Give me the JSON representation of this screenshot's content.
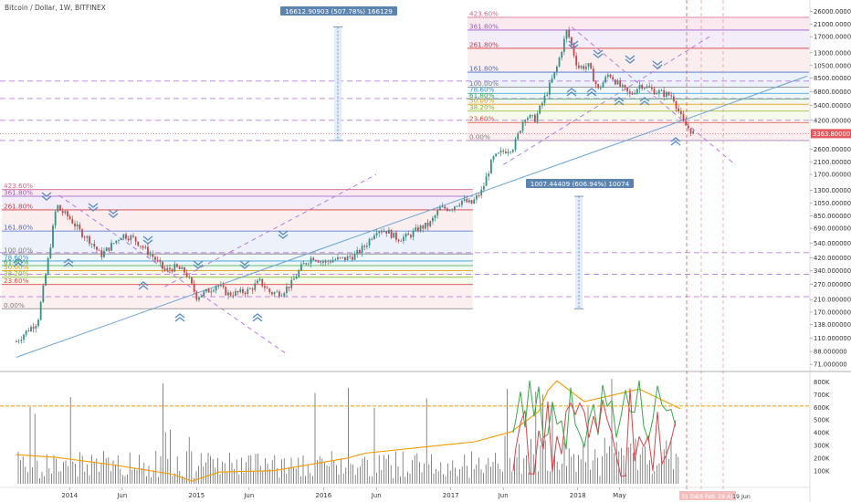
{
  "title": "Bitcoin / Dollar, 1W, BITFINEX",
  "colors": {
    "candle_up": "#3a8e82",
    "candle_down": "#c0494e",
    "trend": "#6aa6d6",
    "dashed": "#b77cdc",
    "hline": "#b77cdc",
    "volume": "#555555",
    "orange": "#f59a00",
    "green": "#3aa84a",
    "red": "#d8434a",
    "price_tag": "#e25a5f",
    "measure": "#5b84b1",
    "chevron": "#5b8ec4"
  },
  "chart_data": {
    "type": "candlestick",
    "symbol": "Bitcoin / Dollar",
    "interval": "1W",
    "exchange": "BITFINEX",
    "y_scale": "log",
    "ylim": [
      65,
      30000
    ],
    "price_ticks": [
      "26000.000000",
      "21000.000000",
      "17000.000000",
      "13000.000000",
      "10500.000000",
      "8500.000000",
      "6800.000000",
      "5400.000000",
      "4200.000000",
      "2600.000000",
      "2100.000000",
      "1700.000000",
      "1300.000000",
      "1050.000000",
      "850.000000",
      "690.000000",
      "540.000000",
      "420.000000",
      "340.000000",
      "270.000000",
      "210.000000",
      "170.000000",
      "138.000000",
      "110.000000",
      "88.000000",
      "71.000000"
    ],
    "last_price": "3363.80000",
    "time_ticks": [
      "2014",
      "Jun",
      "2015",
      "Jun",
      "2016",
      "Jun",
      "2017",
      "Jun",
      "2018",
      "May"
    ],
    "axis_dates": [
      "31 De",
      "18 Feb",
      "19 Apr",
      "19 Jun"
    ],
    "series": [
      {
        "name": "BTCUSD",
        "points": [
          [
            "2013-08",
            104
          ],
          [
            "2013-09",
            125
          ],
          [
            "2013-10",
            145
          ],
          [
            "2013-11",
            420
          ],
          [
            "2013-11-25",
            1050
          ],
          [
            "2013-12",
            950
          ],
          [
            "2014-01",
            820
          ],
          [
            "2014-02",
            650
          ],
          [
            "2014-03",
            560
          ],
          [
            "2014-04",
            440
          ],
          [
            "2014-05",
            520
          ],
          [
            "2014-06",
            620
          ],
          [
            "2014-07",
            590
          ],
          [
            "2014-08",
            500
          ],
          [
            "2014-09",
            420
          ],
          [
            "2014-10",
            340
          ],
          [
            "2014-11",
            360
          ],
          [
            "2014-12",
            330
          ],
          [
            "2015-01",
            220
          ],
          [
            "2015-02",
            240
          ],
          [
            "2015-03",
            270
          ],
          [
            "2015-04",
            230
          ],
          [
            "2015-05",
            235
          ],
          [
            "2015-06",
            245
          ],
          [
            "2015-07",
            285
          ],
          [
            "2015-08",
            235
          ],
          [
            "2015-09",
            235
          ],
          [
            "2015-10",
            275
          ],
          [
            "2015-11",
            370
          ],
          [
            "2015-12",
            430
          ],
          [
            "2016-01",
            390
          ],
          [
            "2016-02",
            410
          ],
          [
            "2016-03",
            415
          ],
          [
            "2016-04",
            440
          ],
          [
            "2016-05",
            520
          ],
          [
            "2016-06",
            680
          ],
          [
            "2016-07",
            660
          ],
          [
            "2016-08",
            580
          ],
          [
            "2016-09",
            605
          ],
          [
            "2016-10",
            690
          ],
          [
            "2016-11",
            740
          ],
          [
            "2016-12",
            960
          ],
          [
            "2017-01",
            970
          ],
          [
            "2017-02",
            1100
          ],
          [
            "2017-03",
            1040
          ],
          [
            "2017-04",
            1300
          ],
          [
            "2017-05",
            2200
          ],
          [
            "2017-06",
            2500
          ],
          [
            "2017-07",
            2700
          ],
          [
            "2017-08",
            4500
          ],
          [
            "2017-09",
            4300
          ],
          [
            "2017-10",
            6400
          ],
          [
            "2017-11",
            10000
          ],
          [
            "2017-12",
            19000
          ],
          [
            "2018-01",
            10200
          ],
          [
            "2018-02",
            10400
          ],
          [
            "2018-03",
            7000
          ],
          [
            "2018-04",
            9200
          ],
          [
            "2018-05",
            7500
          ],
          [
            "2018-06",
            6400
          ],
          [
            "2018-07",
            7700
          ],
          [
            "2018-08",
            7000
          ],
          [
            "2018-09",
            6600
          ],
          [
            "2018-10",
            6300
          ],
          [
            "2018-11",
            4000
          ],
          [
            "2018-12",
            3364
          ]
        ]
      }
    ],
    "fib_upper": {
      "levels": [
        "423.60%",
        "361.80%",
        "261.80%",
        "161.80%",
        "100.00%",
        "78.60%",
        "61.80%",
        "50.00%",
        "38.20%",
        "23.60%",
        "0.00%"
      ],
      "prices": [
        23500,
        19000,
        14000,
        9400,
        7300,
        6600,
        6000,
        5500,
        4900,
        4050,
        3000
      ]
    },
    "fib_lower": {
      "levels": [
        "423.60%",
        "361.80%",
        "261.80%",
        "161.80%",
        "100.00%",
        "78.60%",
        "61.80%",
        "50.00%",
        "38.20%",
        "23.60%",
        "0.00%"
      ],
      "prices": [
        1320,
        1180,
        940,
        660,
        450,
        400,
        370,
        340,
        305,
        270,
        180
      ]
    },
    "annotations": [
      {
        "text": "16612.90903 (507.78%) 166129",
        "from_price": 3000,
        "to_price": 20000
      },
      {
        "text": "1007.44409 (606.94%) 10074",
        "from_price": 180,
        "to_price": 1180
      }
    ],
    "volume": {
      "ticks": [
        "800K",
        "700K",
        "600K",
        "500K",
        "400K",
        "300K",
        "200K",
        "100K"
      ],
      "ylim": [
        0,
        860000
      ]
    }
  }
}
